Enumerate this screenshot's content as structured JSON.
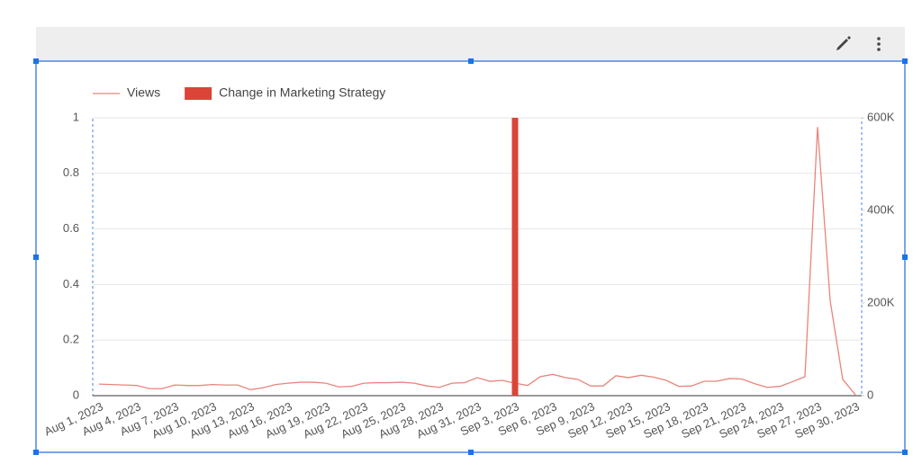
{
  "chart_data": {
    "type": "combo",
    "categories": [
      "Aug 1, 2023",
      null,
      null,
      "Aug 4, 2023",
      null,
      null,
      "Aug 7, 2023",
      null,
      null,
      "Aug 10, 2023",
      null,
      null,
      "Aug 13, 2023",
      null,
      null,
      "Aug 16, 2023",
      null,
      null,
      "Aug 19, 2023",
      null,
      null,
      "Aug 22, 2023",
      null,
      null,
      "Aug 25, 2023",
      null,
      null,
      "Aug 28, 2023",
      null,
      null,
      "Aug 31, 2023",
      null,
      null,
      "Sep 3, 2023",
      null,
      null,
      "Sep 6, 2023",
      null,
      null,
      "Sep 9, 2023",
      null,
      null,
      "Sep 12, 2023",
      null,
      null,
      "Sep 15, 2023",
      null,
      null,
      "Sep 18, 2023",
      null,
      null,
      "Sep 21, 2023",
      null,
      null,
      "Sep 24, 2023",
      null,
      null,
      "Sep 27, 2023",
      null,
      null,
      "Sep 30, 2023"
    ],
    "series": [
      {
        "name": "Views",
        "type": "line",
        "axis": "y2",
        "color": "#e8857b",
        "values": [
          25000,
          24000,
          23000,
          22000,
          15000,
          15000,
          23000,
          22000,
          22000,
          24000,
          23000,
          23000,
          13000,
          17000,
          24000,
          27000,
          29000,
          29000,
          27000,
          19000,
          20000,
          27000,
          28000,
          28000,
          29000,
          27000,
          21000,
          18000,
          27000,
          28000,
          39000,
          31000,
          33000,
          27000,
          22000,
          41000,
          46000,
          39000,
          35000,
          21000,
          21000,
          43000,
          39000,
          44000,
          40000,
          33000,
          20000,
          21000,
          31000,
          31000,
          37000,
          36000,
          26000,
          18000,
          20000,
          30000,
          41000,
          580000,
          205000,
          35000,
          2000
        ]
      },
      {
        "name": "Change in Marketing Strategy",
        "type": "bar",
        "axis": "y",
        "color": "#db4437",
        "values": [
          0,
          0,
          0,
          0,
          0,
          0,
          0,
          0,
          0,
          0,
          0,
          0,
          0,
          0,
          0,
          0,
          0,
          0,
          0,
          0,
          0,
          0,
          0,
          0,
          0,
          0,
          0,
          0,
          0,
          0,
          0,
          0,
          0,
          1,
          0,
          0,
          0,
          0,
          0,
          0,
          0,
          0,
          0,
          0,
          0,
          0,
          0,
          0,
          0,
          0,
          0,
          0,
          0,
          0,
          0,
          0,
          0,
          0,
          0,
          0,
          0
        ]
      }
    ],
    "ylim": [
      0,
      1
    ],
    "yticks": [
      0,
      0.2,
      0.4,
      0.6,
      0.8,
      1
    ],
    "y2lim": [
      0,
      600000
    ],
    "y2ticks": [
      0,
      {
        "value": 200000,
        "label": "200K"
      },
      {
        "value": 400000,
        "label": "400K"
      },
      {
        "value": 600000,
        "label": "600K"
      }
    ],
    "grid": true
  }
}
